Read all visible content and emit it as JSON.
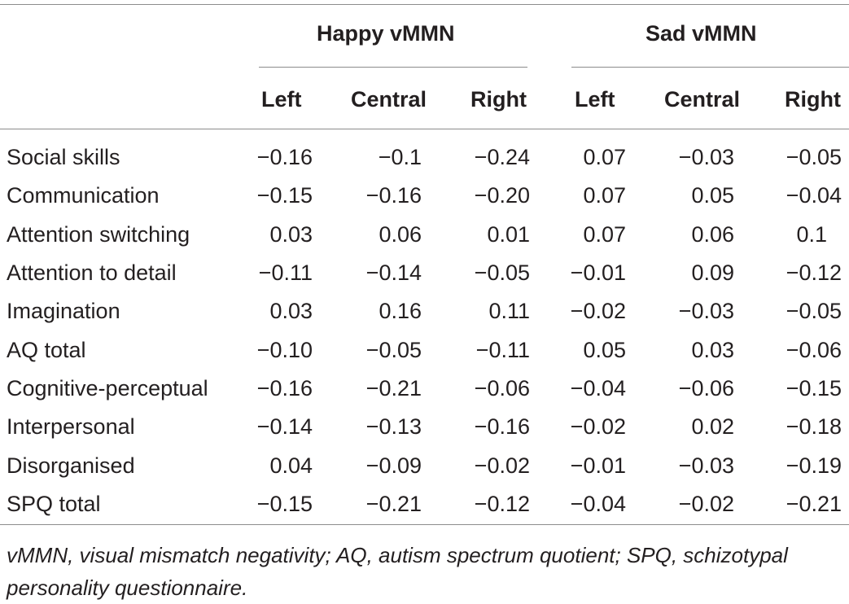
{
  "table": {
    "groups": [
      {
        "label": "Happy vMMN"
      },
      {
        "label": "Sad vMMN"
      }
    ],
    "columns": [
      "Left",
      "Central",
      "Right",
      "Left",
      "Central",
      "Right"
    ],
    "rows": [
      {
        "label": "Social skills",
        "values": [
          "−0.16",
          "−0.1",
          "−0.24",
          "0.07",
          "−0.03",
          "−0.05"
        ]
      },
      {
        "label": "Communication",
        "values": [
          "−0.15",
          "−0.16",
          "−0.20",
          "0.07",
          "0.05",
          "−0.04"
        ]
      },
      {
        "label": "Attention switching",
        "values": [
          "0.03",
          "0.06",
          "0.01",
          "0.07",
          "0.06",
          "0.1"
        ]
      },
      {
        "label": "Attention to detail",
        "values": [
          "−0.11",
          "−0.14",
          "−0.05",
          "−0.01",
          "0.09",
          "−0.12"
        ]
      },
      {
        "label": "Imagination",
        "values": [
          "0.03",
          "0.16",
          "0.11",
          "−0.02",
          "−0.03",
          "−0.05"
        ]
      },
      {
        "label": "AQ total",
        "values": [
          "−0.10",
          "−0.05",
          "−0.11",
          "0.05",
          "0.03",
          "−0.06"
        ]
      },
      {
        "label": "Cognitive-perceptual",
        "values": [
          "−0.16",
          "−0.21",
          "−0.06",
          "−0.04",
          "−0.06",
          "−0.15"
        ]
      },
      {
        "label": "Interpersonal",
        "values": [
          "−0.14",
          "−0.13",
          "−0.16",
          "−0.02",
          "0.02",
          "−0.18"
        ]
      },
      {
        "label": "Disorganised",
        "values": [
          "0.04",
          "−0.09",
          "−0.02",
          "−0.01",
          "−0.03",
          "−0.19"
        ]
      },
      {
        "label": "SPQ total",
        "values": [
          "−0.15",
          "−0.21",
          "−0.12",
          "−0.04",
          "−0.02",
          "−0.21"
        ]
      }
    ],
    "footnote": "vMMN, visual mismatch negativity; AQ, autism spectrum quotient; SPQ, schizotypal personality questionnaire."
  }
}
